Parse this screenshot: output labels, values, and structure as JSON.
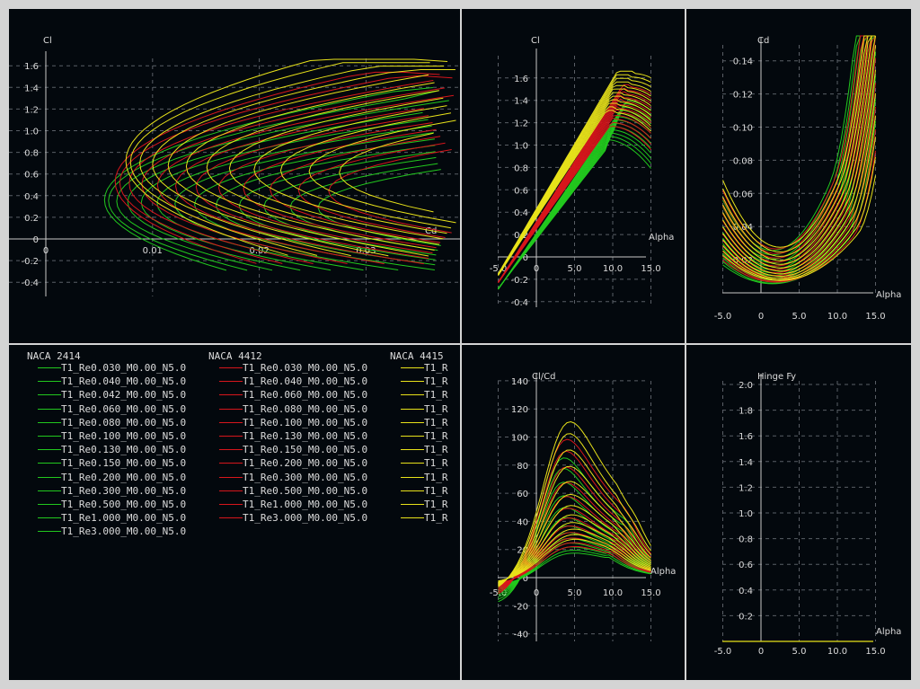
{
  "chart_data": [
    {
      "type": "line",
      "panel": "polar",
      "xlabel": "Cd",
      "ylabel": "Cl",
      "xlim": [
        0,
        0.0385
      ],
      "ylim": [
        -0.5,
        1.78
      ],
      "xticks": [
        "0",
        "0.01",
        "0.02",
        "0.03"
      ],
      "yticks": [
        "1.6",
        "1.4",
        "1.2",
        "1.0",
        "0.8",
        "0.6",
        "0.4",
        "0.2",
        "0",
        "-0.2",
        "-0.4"
      ],
      "grid": true
    },
    {
      "type": "line",
      "panel": "cl-alpha",
      "xlabel": "Alpha",
      "ylabel": "Cl",
      "xlim": [
        -5,
        15
      ],
      "ylim": [
        -0.55,
        1.8
      ],
      "xticks": [
        "-5.0",
        "0",
        "5.0",
        "10.0",
        "15.0"
      ],
      "yticks": [
        "1.6",
        "1.4",
        "1.2",
        "1.0",
        "0.8",
        "0.6",
        "0.4",
        "0.2",
        "0",
        "-0.2",
        "-0.4"
      ],
      "grid": true
    },
    {
      "type": "line",
      "panel": "cd-alpha",
      "xlabel": "Alpha",
      "ylabel": "Cd",
      "xlim": [
        -5,
        15
      ],
      "ylim": [
        0,
        0.155
      ],
      "xticks": [
        "-5.0",
        "0",
        "5.0",
        "10.0",
        "15.0"
      ],
      "yticks": [
        "0.14",
        "0.12",
        "0.10",
        "0.08",
        "0.06",
        "0.04",
        "0.02"
      ],
      "grid": true
    },
    {
      "type": "line",
      "panel": "clcd-alpha",
      "xlabel": "Alpha",
      "ylabel": "Cl/Cd",
      "xlim": [
        -5,
        15
      ],
      "ylim": [
        -45,
        145
      ],
      "xticks": [
        "-5.0",
        "0",
        "5.0",
        "10.0",
        "15.0"
      ],
      "yticks": [
        "140",
        "120",
        "100",
        "80",
        "60",
        "40",
        "20",
        "0",
        "-20",
        "-40"
      ],
      "grid": true
    },
    {
      "type": "line",
      "panel": "hinge-alpha",
      "xlabel": "Alpha",
      "ylabel": "Hinge Fy",
      "xlim": [
        -5,
        15
      ],
      "ylim": [
        0,
        2.0
      ],
      "xticks": [
        "-5.0",
        "0",
        "5.0",
        "10.0",
        "15.0"
      ],
      "yticks": [
        "2.0",
        "1.8",
        "1.6",
        "1.4",
        "1.2",
        "1.0",
        "0.8",
        "0.6",
        "0.4",
        "0.2"
      ],
      "grid": true,
      "series": [
        {
          "values": [
            0,
            0
          ]
        }
      ]
    }
  ],
  "legend": {
    "groups": [
      {
        "title": "NACA 2414",
        "color": "#22c81e",
        "items": [
          "T1_Re0.030_M0.00_N5.0",
          "T1_Re0.040_M0.00_N5.0",
          "T1_Re0.042_M0.00_N5.0",
          "T1_Re0.060_M0.00_N5.0",
          "T1_Re0.080_M0.00_N5.0",
          "T1_Re0.100_M0.00_N5.0",
          "T1_Re0.130_M0.00_N5.0",
          "T1_Re0.150_M0.00_N5.0",
          "T1_Re0.200_M0.00_N5.0",
          "T1_Re0.300_M0.00_N5.0",
          "T1_Re0.500_M0.00_N5.0",
          "T1_Re1.000_M0.00_N5.0",
          "T1_Re3.000_M0.00_N5.0"
        ]
      },
      {
        "title": "NACA 4412",
        "color": "#d8161c",
        "items": [
          "T1_Re0.030_M0.00_N5.0",
          "T1_Re0.040_M0.00_N5.0",
          "T1_Re0.060_M0.00_N5.0",
          "T1_Re0.080_M0.00_N5.0",
          "T1_Re0.100_M0.00_N5.0",
          "T1_Re0.130_M0.00_N5.0",
          "T1_Re0.150_M0.00_N5.0",
          "T1_Re0.200_M0.00_N5.0",
          "T1_Re0.300_M0.00_N5.0",
          "T1_Re0.500_M0.00_N5.0",
          "T1_Re1.000_M0.00_N5.0",
          "T1_Re3.000_M0.00_N5.0"
        ]
      },
      {
        "title": "NACA 4415",
        "color": "#e8e21a",
        "items": [
          "T1_R",
          "T1_R",
          "T1_R",
          "T1_R",
          "T1_R",
          "T1_R",
          "T1_R",
          "T1_R",
          "T1_R",
          "T1_R",
          "T1_R",
          "T1_R"
        ]
      }
    ]
  },
  "colors": {
    "background": "#d4d4d4",
    "panel": "#03080d",
    "axis": "#c8c8c8",
    "grid": "#5a5f66",
    "text": "#dcdcdc",
    "green": "#22c81e",
    "red": "#d8161c",
    "yellow": "#e8e21a"
  }
}
